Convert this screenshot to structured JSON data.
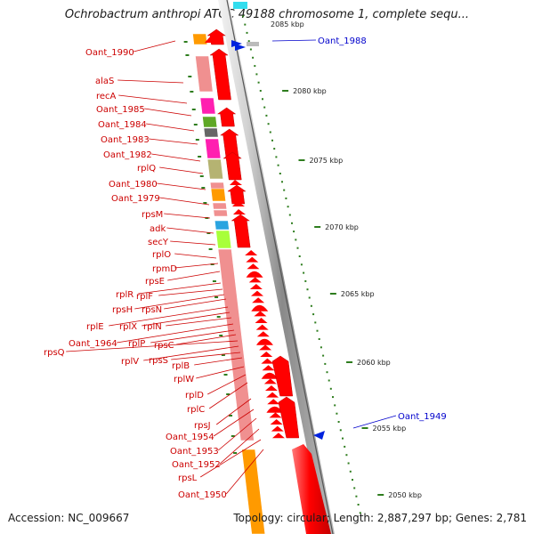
{
  "title": "Ochrobactrum anthropi ATCC 49188 chromosome 1, complete sequ...",
  "accession": "Accession: NC_009667",
  "summary": "Topology: circular; Length: 2,887,297 bp; Genes: 2,781",
  "colors": {
    "backbone": "#999999",
    "minus_strand_label": "#cc0000",
    "plus_strand_label": "#0000cc",
    "scale_ticks": "#2e7d1e"
  },
  "scale": {
    "top_partial_label": "2085 kbp",
    "ticks": [
      "2080 kbp",
      "2075 kbp",
      "2070 kbp",
      "2065 kbp",
      "2060 kbp",
      "2055 kbp",
      "2050 kbp"
    ]
  },
  "minus_strand_labels": [
    "Oant_1990",
    "alaS",
    "recA",
    "Oant_1985",
    "Oant_1984",
    "Oant_1983",
    "Oant_1982",
    "rplQ",
    "Oant_1980",
    "Oant_1979",
    "rpsM",
    "adk",
    "secY",
    "rplO",
    "rpmD",
    "rpsE",
    "rplR",
    "rplF",
    "rpsH",
    "rpsN",
    "rplE",
    "rplX",
    "rplN",
    "Oant_1964",
    "rplP",
    "rpsC",
    "rpsQ",
    "rplV",
    "rpsS",
    "rplB",
    "rplW",
    "rplD",
    "rplC",
    "rpsJ",
    "Oant_1954",
    "Oant_1953",
    "Oant_1952",
    "rpsL",
    "Oant_1950"
  ],
  "plus_strand_labels": [
    "Oant_1988",
    "Oant_1949"
  ]
}
